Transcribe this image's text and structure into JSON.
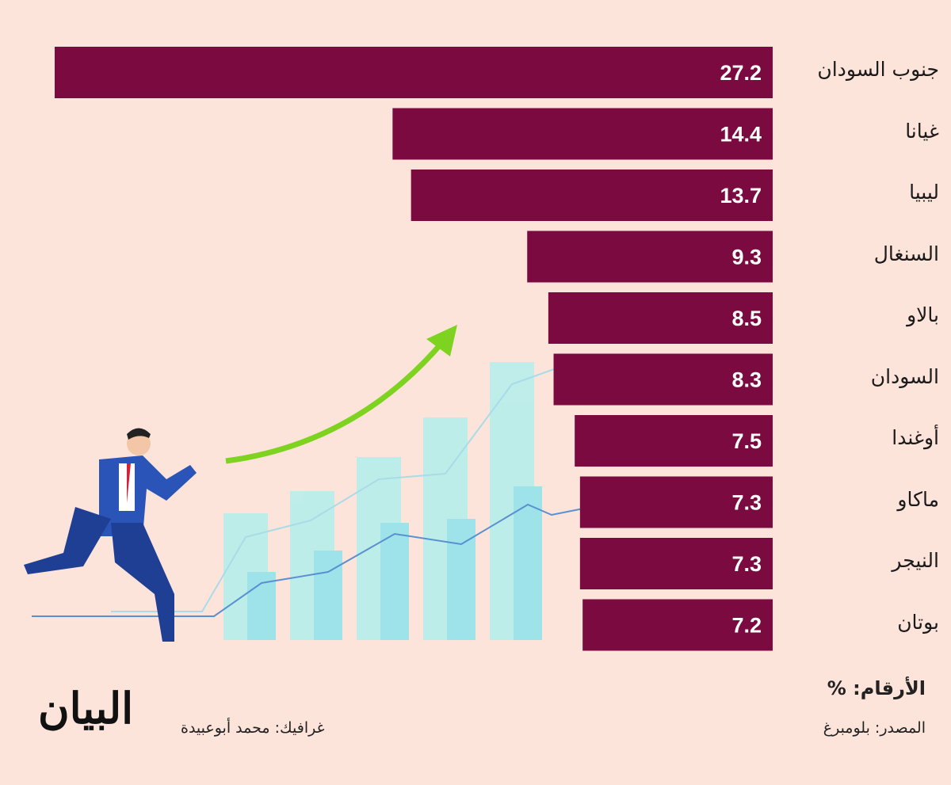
{
  "chart_data": {
    "type": "bar",
    "orientation": "horizontal",
    "categories": [
      "جنوب السودان",
      "غيانا",
      "ليبيا",
      "السنغال",
      "بالاو",
      "السودان",
      "أوغندا",
      "ماكاو",
      "النيجر",
      "بوتان"
    ],
    "values": [
      27.2,
      14.4,
      13.7,
      9.3,
      8.5,
      8.3,
      7.5,
      7.3,
      7.3,
      7.2
    ],
    "value_labels": [
      "27.2",
      "14.4",
      "13.7",
      "9.3",
      "8.5",
      "8.3",
      "7.5",
      "7.3",
      "7.3",
      "7.2"
    ],
    "unit_note": "الأرقام: %",
    "colors": {
      "bar": "#7b0a40",
      "background": "#fde4da",
      "value_text": "#ffffff"
    },
    "grid": false
  },
  "footer": {
    "source": "المصدر: بلومبرغ",
    "credit": "غرافيك: محمد أبوعبيدة",
    "logo": "البيان"
  }
}
